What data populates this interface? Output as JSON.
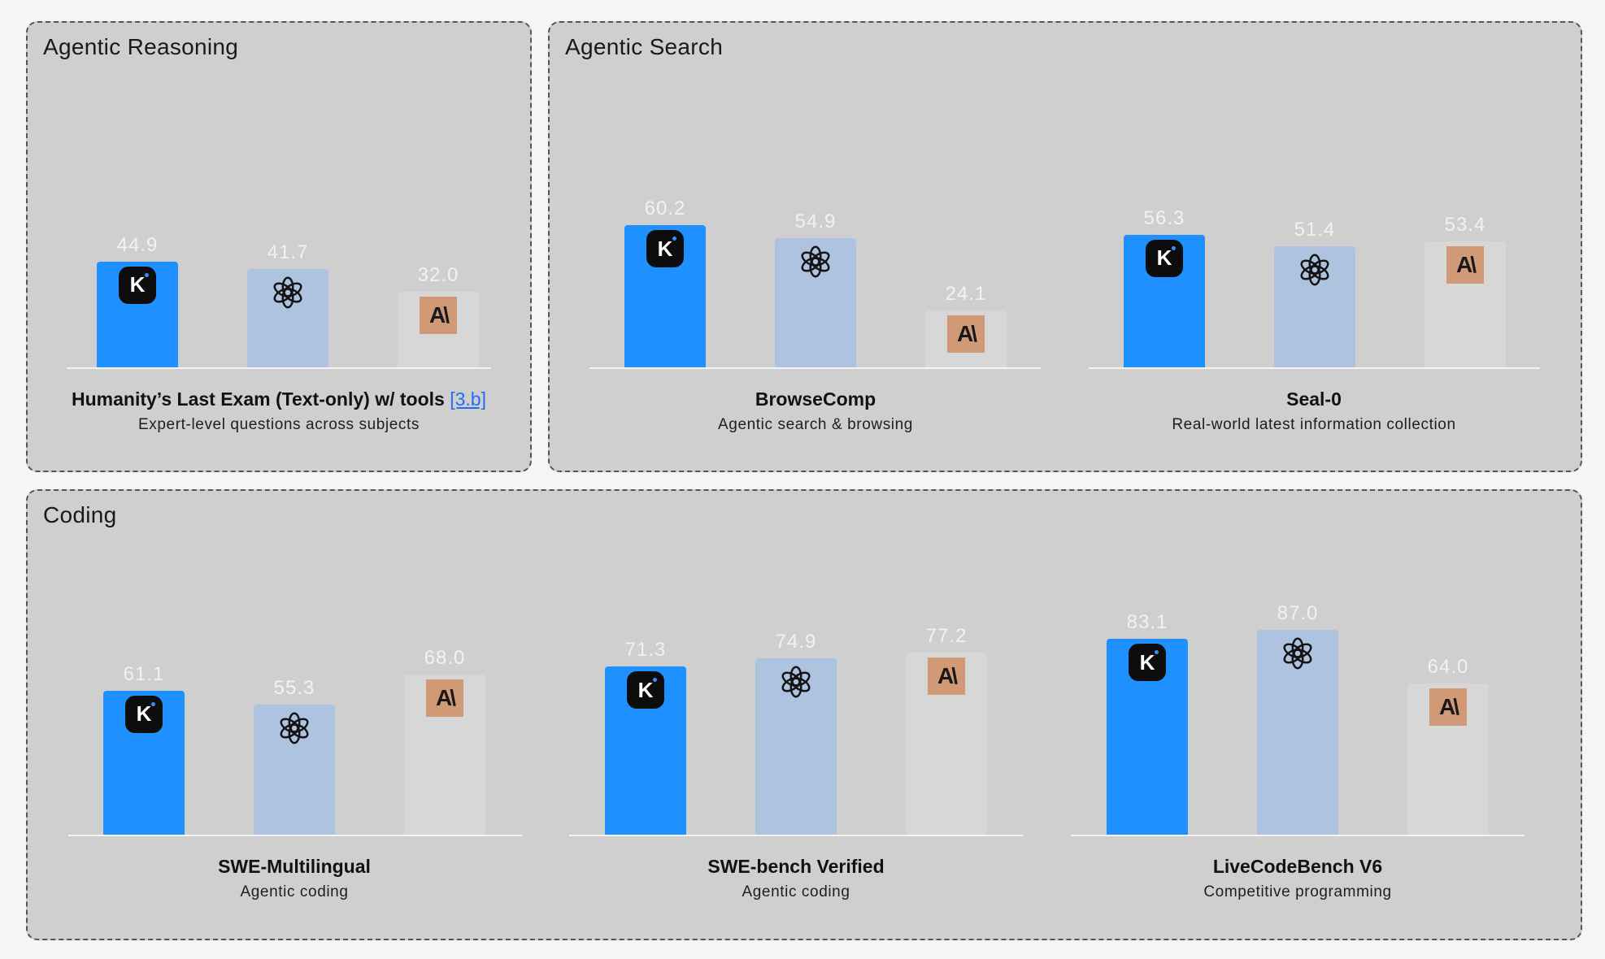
{
  "colors": {
    "kimi": "#1e90ff",
    "openai": "#adc3df",
    "anthropic": "#d7d7d7",
    "anthropic_logo": "#d19a77"
  },
  "panels": [
    {
      "title": "Agentic Reasoning"
    },
    {
      "title": "Agentic Search"
    },
    {
      "title": "Coding"
    }
  ],
  "chart_data": [
    {
      "type": "bar",
      "title": "Humanity’s Last Exam (Text-only) w/ tools",
      "ref": "[3.b]",
      "subtitle": "Expert-level questions across subjects",
      "values": [
        44.9,
        41.7,
        32.0
      ],
      "labels": [
        "44.9",
        "41.7",
        "32.0"
      ],
      "logos": [
        "kimi-logo-icon",
        "openai-logo-icon",
        "anthropic-logo-icon"
      ]
    },
    {
      "type": "bar",
      "title": "BrowseComp",
      "subtitle": "Agentic search & browsing",
      "values": [
        60.2,
        54.9,
        24.1
      ],
      "labels": [
        "60.2",
        "54.9",
        "24.1"
      ],
      "logos": [
        "kimi-logo-icon",
        "openai-logo-icon",
        "anthropic-logo-icon"
      ]
    },
    {
      "type": "bar",
      "title": "Seal-0",
      "subtitle": "Real-world latest information collection",
      "values": [
        56.3,
        51.4,
        53.4
      ],
      "labels": [
        "56.3",
        "51.4",
        "53.4"
      ],
      "logos": [
        "kimi-logo-icon",
        "openai-logo-icon",
        "anthropic-logo-icon"
      ]
    },
    {
      "type": "bar",
      "title": "SWE-Multilingual",
      "subtitle": "Agentic coding",
      "values": [
        61.1,
        55.3,
        68.0
      ],
      "labels": [
        "61.1",
        "55.3",
        "68.0"
      ],
      "logos": [
        "kimi-logo-icon",
        "openai-logo-icon",
        "anthropic-logo-icon"
      ]
    },
    {
      "type": "bar",
      "title": "SWE-bench Verified",
      "subtitle": "Agentic coding",
      "values": [
        71.3,
        74.9,
        77.2
      ],
      "labels": [
        "71.3",
        "74.9",
        "77.2"
      ],
      "logos": [
        "kimi-logo-icon",
        "openai-logo-icon",
        "anthropic-logo-icon"
      ]
    },
    {
      "type": "bar",
      "title": "LiveCodeBench V6",
      "subtitle": "Competitive programming",
      "values": [
        83.1,
        87.0,
        64.0
      ],
      "labels": [
        "83.1",
        "87.0",
        "64.0"
      ],
      "logos": [
        "kimi-logo-icon",
        "openai-logo-icon",
        "anthropic-logo-icon"
      ]
    }
  ]
}
